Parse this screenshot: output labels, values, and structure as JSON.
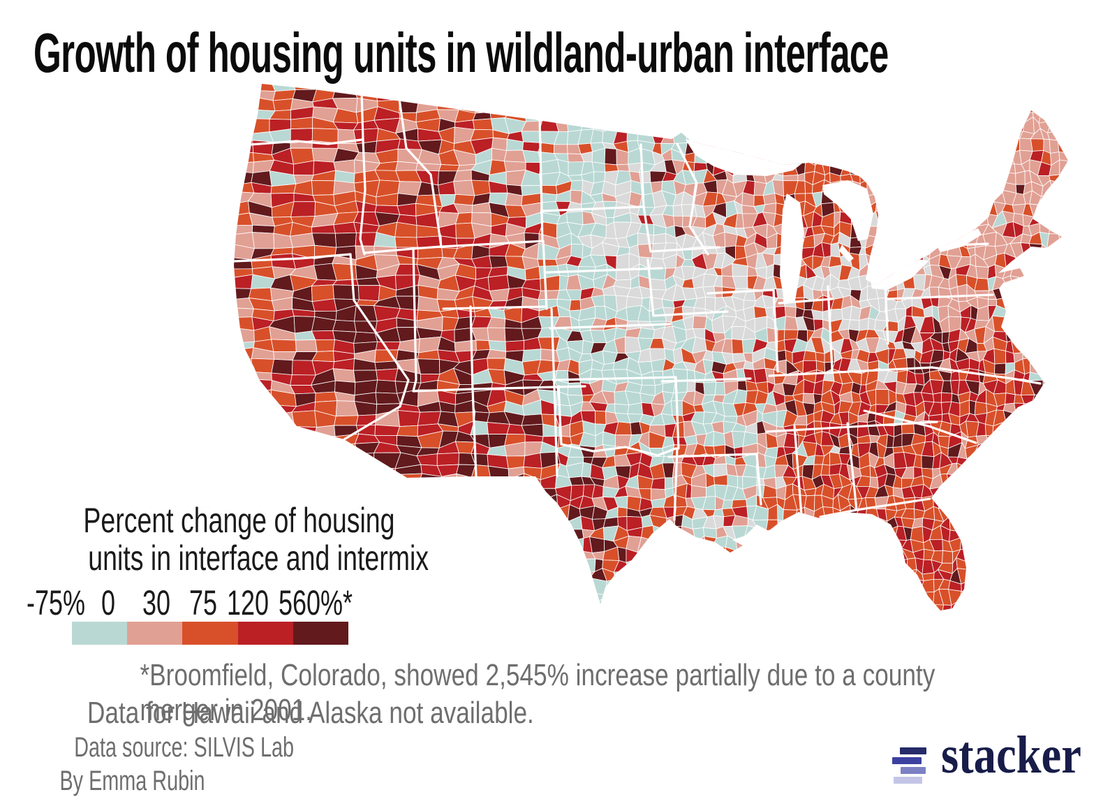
{
  "header": {
    "title": "Growth of housing units in wildland-urban interface"
  },
  "legend": {
    "title_line1": "Percent change of housing",
    "title_line2": "units in interface and intermix",
    "ticks": [
      "-75%",
      "0",
      "30",
      "75",
      "120",
      "560%*"
    ],
    "swatch_colors": [
      "#b9d8d4",
      "#e1a094",
      "#d8502a",
      "#bb2025",
      "#621a1d"
    ],
    "nodata_color": "#dadada"
  },
  "footnotes": {
    "asterisk_line1": "*Broomfield, Colorado, showed 2,545% increase partially due to a county merger in 2001.",
    "asterisk_line2": "Data for Hawaii and Alaska not available.",
    "source": "Data source: SILVIS Lab",
    "byline": "By Emma Rubin"
  },
  "logo": {
    "text": "stacker",
    "bar_colors": [
      "#262b69",
      "#3c41a0",
      "#7d81c4",
      "#c4c5e7"
    ]
  },
  "chart_data": {
    "type": "choropleth",
    "title": "Growth of housing units in wildland-urban interface",
    "geography": "United States counties, contiguous 48 states (Albers projection)",
    "metric": "Percent change of housing units in interface and intermix",
    "legend_label": "Percent change of housing units in interface and intermix",
    "scale_breaks_percent": [
      -75,
      0,
      30,
      75,
      120,
      560
    ],
    "scale_tick_labels": [
      "-75%",
      "0",
      "30",
      "75",
      "120",
      "560%*"
    ],
    "scale_colors": [
      "#b9d8d4",
      "#e1a094",
      "#d8502a",
      "#bb2025",
      "#621a1d"
    ],
    "no_data_color": "#dadada",
    "outlier_note": "Broomfield, Colorado, showed 2,545% increase partially due to a county merger in 2001.",
    "coverage_note": "Data for Hawaii and Alaska not available.",
    "source": "SILVIS Lab",
    "author": "Emma Rubin",
    "regional_pattern_summary": {
      "west_mountain": "mostly 30-120%+ (orange/red) with 120%+ (dark maroon) clusters in Nevada, southern Utah, Arizona",
      "great_plains": "mostly negative to 0% (light blue) and 0-30% (salmon)",
      "upper_midwest_ohio_valley": "many no-data (gray) counties in Iowa, Illinois, Indiana, Ohio, Minnesota",
      "northeast": "mostly 0-30% (salmon)",
      "south_southeast": "mostly 30-120% (orange/red) with dark clusters in central Texas, northern Georgia, Virginia, Florida"
    }
  }
}
